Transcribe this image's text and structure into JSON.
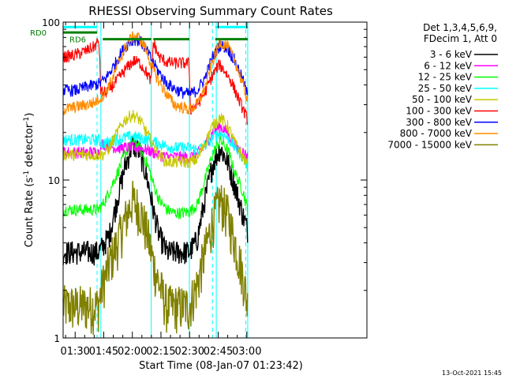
{
  "chart_data": {
    "type": "line",
    "title": "RHESSI Observing Summary Count Rates",
    "xlabel": "Start Time (08-Jan-07 01:23:42)",
    "ylabel_main": "Count Rate (s",
    "ylabel_sup": "-1",
    "ylabel_mid": " detector",
    "ylabel_end": ")",
    "yscale": "log",
    "ylim": [
      1,
      100
    ],
    "xlim_min": [
      23.7,
      183.0
    ],
    "x_unit": "minutes after 01:00",
    "xticks": [
      {
        "x": 30,
        "label": "01:30"
      },
      {
        "x": 45,
        "label": "01:45"
      },
      {
        "x": 60,
        "label": "02:00"
      },
      {
        "x": 75,
        "label": "02:15"
      },
      {
        "x": 90,
        "label": "02:30"
      },
      {
        "x": 105,
        "label": "02:45"
      },
      {
        "x": 120,
        "label": "03:00"
      }
    ],
    "yticks": [
      {
        "y": 1,
        "label": "1"
      },
      {
        "y": 10,
        "label": "10"
      },
      {
        "y": 100,
        "label": "100"
      }
    ],
    "legend_position": "right",
    "legend_header": [
      "Det 1,3,4,5,6,9,",
      "FDecim 1, Att 0"
    ],
    "series": [
      {
        "name": "3 - 6 keV",
        "color": "#000000",
        "x": [
          23.7,
          42,
          44.5,
          48,
          52,
          56,
          60,
          64,
          68,
          71,
          74,
          78,
          82,
          86,
          89.9,
          94,
          98,
          102,
          106,
          110,
          114,
          118,
          120.5
        ],
        "y": [
          3.5,
          3.5,
          3.8,
          4.5,
          7.5,
          12,
          17,
          15,
          10,
          6.5,
          4.5,
          3.5,
          3.5,
          3.5,
          3.5,
          4.2,
          7.5,
          12.5,
          16,
          13,
          9,
          6,
          4.8
        ]
      },
      {
        "name": "6 - 12 keV",
        "color": "#ff00ff",
        "x": [
          23.7,
          42,
          44.5,
          48,
          52,
          56,
          60,
          64,
          68,
          71,
          74,
          78,
          82,
          86,
          89.9,
          94,
          98,
          102,
          106,
          110,
          114,
          118,
          120.5
        ],
        "y": [
          15,
          15,
          17,
          16.5,
          16,
          16,
          16,
          16,
          15.5,
          15,
          14.5,
          14,
          14,
          14,
          14,
          14.5,
          16.5,
          20,
          22,
          20,
          16.5,
          15,
          14
        ]
      },
      {
        "name": "12 - 25 keV",
        "color": "#00ff00",
        "x": [
          23.7,
          42,
          44.5,
          48,
          52,
          56,
          60,
          64,
          68,
          71,
          74,
          78,
          82,
          86,
          89.9,
          94,
          98,
          102,
          106,
          110,
          114,
          118,
          120.5
        ],
        "y": [
          6.5,
          6.5,
          7,
          8.5,
          11,
          14.5,
          17.5,
          16,
          12.5,
          9.5,
          7.5,
          6.5,
          6.2,
          6.2,
          6.3,
          7,
          10,
          14.5,
          18,
          15.5,
          11,
          8.5,
          6.5
        ]
      },
      {
        "name": "25 - 50 keV",
        "color": "#00ffff",
        "x": [
          23.7,
          42,
          44.5,
          48,
          52,
          56,
          60,
          64,
          68,
          71,
          74,
          78,
          82,
          86,
          89.9,
          94,
          98,
          102,
          106,
          110,
          114,
          118,
          120.5
        ],
        "y": [
          18,
          18,
          17,
          17.5,
          18,
          18.5,
          19,
          18.5,
          18,
          17.5,
          17,
          16.5,
          16,
          16,
          16,
          15.5,
          16.5,
          18.5,
          20,
          18.5,
          16,
          14,
          12
        ]
      },
      {
        "name": "50 - 100 keV",
        "color": "#c8c800",
        "x": [
          23.7,
          42,
          44.5,
          48,
          52,
          56,
          60,
          64,
          68,
          71,
          74,
          78,
          82,
          86,
          89.9,
          94,
          98,
          102,
          106,
          110,
          114,
          118,
          120.5
        ],
        "y": [
          14.5,
          14.5,
          14.5,
          16,
          20,
          24,
          26,
          24,
          19.5,
          16.5,
          14.5,
          13,
          13,
          13,
          13,
          13.5,
          17,
          22,
          25,
          22,
          17,
          14,
          12.5
        ]
      },
      {
        "name": "100 - 300 keV",
        "color": "#ff0000",
        "x": [
          23.7,
          30,
          36,
          40,
          42.5,
          43.5,
          46,
          50,
          54,
          58,
          61,
          64,
          67,
          69.9,
          71,
          74,
          78,
          82,
          86,
          89.7,
          90.5,
          94,
          98,
          102,
          105.5,
          108,
          112,
          116,
          120.5
        ],
        "y": [
          60,
          62,
          66,
          70,
          76,
          36,
          36,
          40,
          46,
          53,
          57,
          55,
          49,
          42,
          75,
          60,
          56,
          55,
          55,
          55,
          28,
          30,
          36,
          46,
          54,
          50,
          42,
          32,
          24
        ]
      },
      {
        "name": "300 - 800 keV",
        "color": "#0000ff",
        "x": [
          23.7,
          30,
          36,
          40,
          43,
          46,
          50,
          54,
          58,
          61,
          64,
          67,
          70,
          74,
          78,
          82,
          86,
          89.9,
          94,
          98,
          102,
          106,
          110,
          114,
          118,
          120.5
        ],
        "y": [
          37,
          37,
          39,
          40,
          41,
          44,
          52,
          64,
          74,
          78,
          76,
          68,
          58,
          48,
          41,
          38,
          36,
          35,
          37,
          44,
          60,
          72,
          68,
          56,
          43,
          34
        ]
      },
      {
        "name": "800 - 7000 keV",
        "color": "#ff8c00",
        "x": [
          23.7,
          30,
          36,
          40,
          43,
          46,
          50,
          54,
          58,
          61,
          64,
          67,
          70,
          74,
          78,
          82,
          86,
          89.9,
          94,
          98,
          102,
          106,
          110,
          114,
          118,
          120.5
        ],
        "y": [
          28,
          29,
          30,
          31,
          33,
          36,
          45,
          60,
          76,
          82,
          79,
          68,
          53,
          42,
          35,
          30,
          29,
          28,
          30,
          38,
          56,
          75,
          70,
          56,
          40,
          32
        ]
      },
      {
        "name": "7000 - 15000 keV",
        "color": "#808000",
        "x": [
          23.7,
          42,
          44.5,
          48,
          52,
          56,
          60,
          64,
          68,
          71,
          74,
          78,
          82,
          86,
          89.9,
          94,
          98,
          102,
          106,
          110,
          114,
          118,
          120.5
        ],
        "y": [
          1.6,
          1.6,
          2.2,
          3,
          4,
          5.5,
          7.5,
          6.5,
          4.5,
          3,
          2.2,
          1.6,
          1.6,
          1.6,
          1.6,
          2.2,
          3.5,
          5.5,
          7.5,
          6,
          4,
          2.5,
          1.6
        ]
      }
    ],
    "ref_lines": [
      {
        "name": "RD0",
        "color": "#008000",
        "y": 86,
        "segments": [
          [
            23.7,
            41.5
          ]
        ]
      },
      {
        "name": "RD6",
        "color": "#008000",
        "y": 78,
        "segments": [
          [
            44.5,
            69.9
          ],
          [
            71,
            89.9
          ],
          [
            103.5,
            120.5
          ]
        ]
      }
    ],
    "attenuator_bars": {
      "color": "#00ffff",
      "y": 93,
      "segments": [
        [
          23.7,
          41.5
        ],
        [
          103.5,
          120.5
        ]
      ]
    },
    "boundaries": {
      "color": "#00ffff",
      "solid": [
        23.7,
        43.5,
        69.9,
        89.9,
        104.0,
        120.5
      ],
      "dashed": [
        41.5,
        102.0,
        119.5
      ]
    },
    "footer_date": "13-Oct-2021 15:45"
  }
}
